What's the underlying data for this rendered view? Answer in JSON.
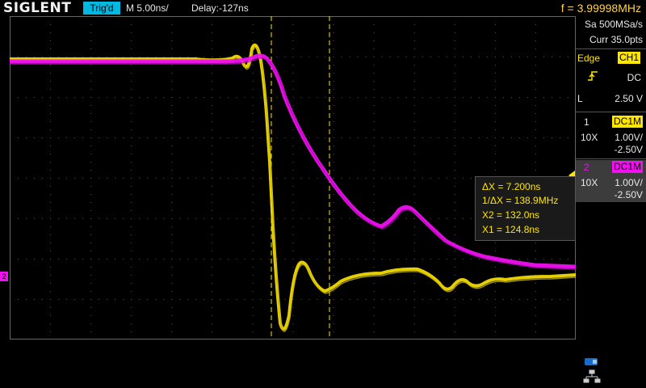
{
  "topbar": {
    "logo": "SIGLENT",
    "trig_status": "Trig'd",
    "timebase": "M 5.00ns/",
    "delay": "Delay:-127ns",
    "frequency": "f = 3.99998MHz"
  },
  "acquisition": {
    "sample_rate": "Sa 500MSa/s",
    "curr_pts": "Curr 35.0pts"
  },
  "trigger": {
    "type": "Edge",
    "source": "CH1",
    "slope_icon": "rising-edge-icon",
    "coupling": "DC",
    "level_prefix": "L",
    "level_value": "2.50 V"
  },
  "channels": [
    {
      "num": "1",
      "coupling_imp": "DC1M",
      "probe": "10X",
      "scale": "1.00V/",
      "offset": "-2.50V",
      "color": "#ffe600"
    },
    {
      "num": "2",
      "coupling_imp": "DC1M",
      "probe": "10X",
      "scale": "1.00V/",
      "offset": "-2.50V",
      "color": "#f010f0"
    }
  ],
  "cursors": {
    "delta_x": "ΔX = 7.200ns",
    "inv_delta_x": "1/ΔX = 138.9MHz",
    "x2": "X2 = 132.0ns",
    "x1": "X1 = 124.8ns"
  },
  "markers": {
    "ch2_label": "2"
  },
  "colors": {
    "ch1": "#ffe600",
    "ch2": "#f010f0",
    "trig_badge": "#00b8e0",
    "freq_text": "#ffd24a"
  }
}
